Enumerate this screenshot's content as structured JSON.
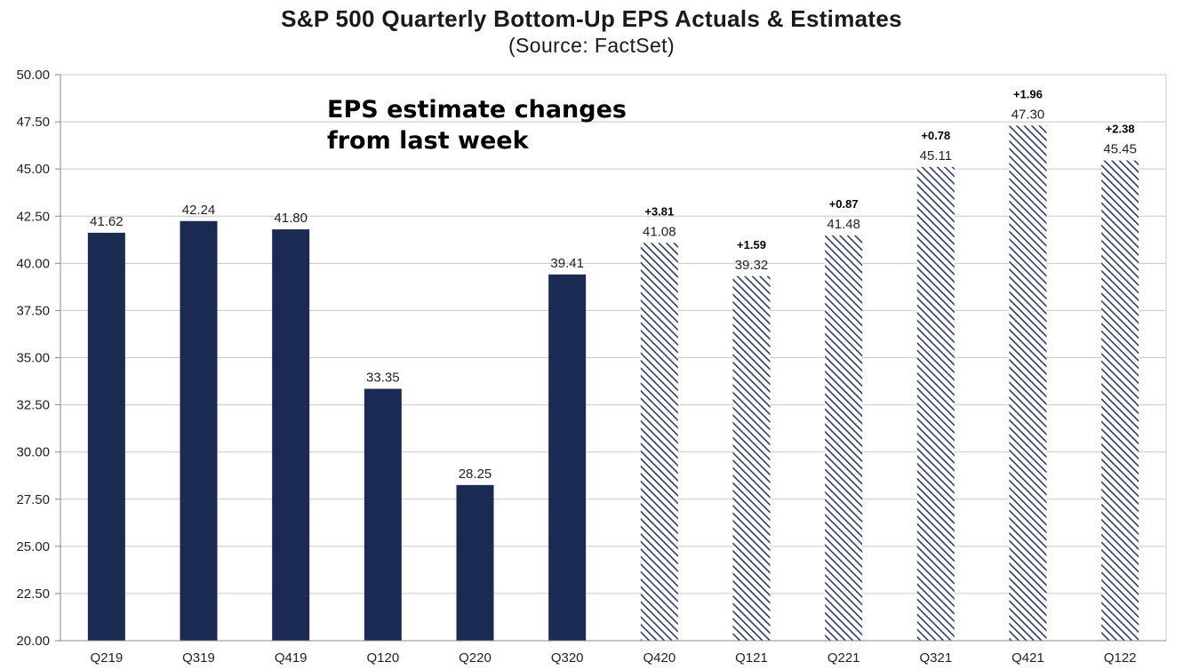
{
  "chart_data": {
    "type": "bar",
    "title": "S&P 500 Quarterly Bottom-Up EPS Actuals & Estimates",
    "subtitle": "(Source: FactSet)",
    "annotation": [
      "EPS estimate changes",
      "from last week"
    ],
    "categories": [
      "Q219",
      "Q319",
      "Q419",
      "Q120",
      "Q220",
      "Q320",
      "Q420",
      "Q121",
      "Q221",
      "Q321",
      "Q421",
      "Q122"
    ],
    "values": [
      41.62,
      42.24,
      41.8,
      33.35,
      28.25,
      39.41,
      41.08,
      39.32,
      41.48,
      45.11,
      47.3,
      45.45
    ],
    "value_labels": [
      "41.62",
      "42.24",
      "41.80",
      "33.35",
      "28.25",
      "39.41",
      "41.08",
      "39.32",
      "41.48",
      "45.11",
      "47.30",
      "45.45"
    ],
    "kind": [
      "actual",
      "actual",
      "actual",
      "actual",
      "actual",
      "actual",
      "estimate",
      "estimate",
      "estimate",
      "estimate",
      "estimate",
      "estimate"
    ],
    "changes": [
      "",
      "",
      "",
      "",
      "",
      "",
      "+3.81",
      "+1.59",
      "+0.87",
      "+0.78",
      "+1.96",
      "+2.38"
    ],
    "ylim": [
      20,
      50
    ],
    "yticks": [
      "20.00",
      "22.50",
      "25.00",
      "27.50",
      "30.00",
      "32.50",
      "35.00",
      "37.50",
      "40.00",
      "42.50",
      "45.00",
      "47.50",
      "50.00"
    ],
    "grid": true,
    "colors": {
      "actual": "#1b2a52",
      "estimate_stripe": "#2e3b5c",
      "grid": "#c8c8c8",
      "axis": "#888888"
    }
  }
}
